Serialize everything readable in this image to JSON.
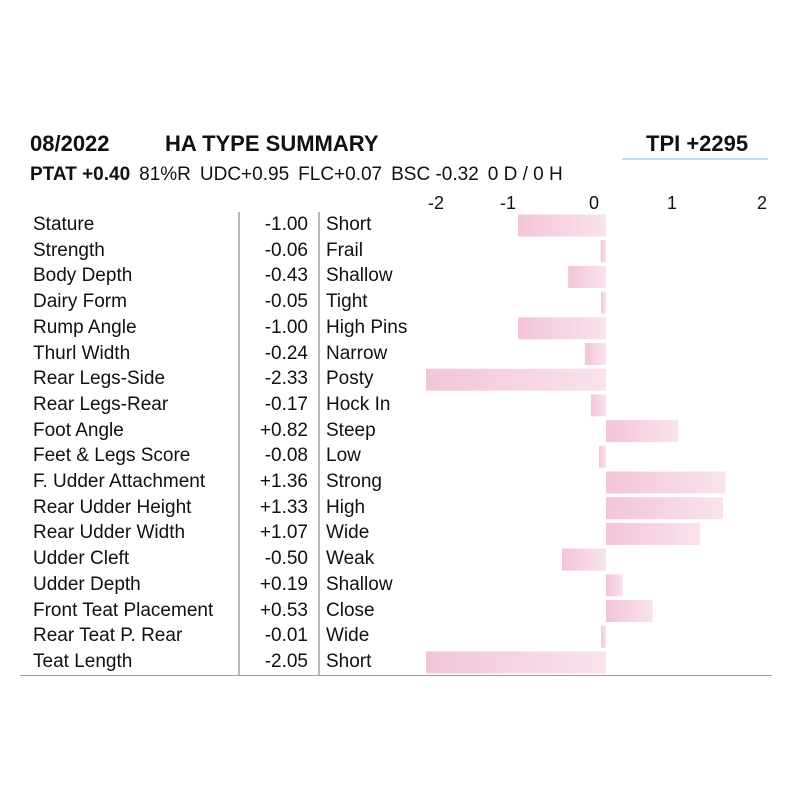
{
  "header": {
    "date": "08/2022",
    "title": "HA TYPE SUMMARY",
    "tpi": "TPI +2295"
  },
  "subheader": {
    "ptat": "PTAT +0.40",
    "reliability": "81%R",
    "udc": "UDC+0.95",
    "flc": "FLC+0.07",
    "bsc": "BSC -0.32",
    "daughters": "0 D /  0 H"
  },
  "colors": {
    "bar": "#f3c4d8",
    "bar_light": "#f9e3ed",
    "rule": "#b8b8b8",
    "accent_line": "#bfe0ea"
  },
  "chart_data": {
    "type": "bar",
    "orientation": "horizontal",
    "x_ticks": [
      "-2",
      "-1",
      "0",
      "1",
      "2"
    ],
    "xlim": [
      -2,
      2
    ],
    "categories": [
      "Stature",
      "Strength",
      "Body Depth",
      "Dairy Form",
      "Rump Angle",
      "Thurl Width",
      "Rear Legs-Side",
      "Rear Legs-Rear",
      "Foot Angle",
      "Feet & Legs Score",
      "F. Udder Attachment",
      "Rear Udder Height",
      "Rear Udder Width",
      "Udder Cleft",
      "Udder Depth",
      "Front Teat Placement",
      "Rear Teat P. Rear",
      "Teat Length"
    ],
    "value_labels": [
      "-1.00",
      "-0.06",
      "-0.43",
      "-0.05",
      "-1.00",
      "-0.24",
      "-2.33",
      "-0.17",
      "+0.82",
      "-0.08",
      "+1.36",
      "+1.33",
      "+1.07",
      "-0.50",
      "+0.19",
      "+0.53",
      "-0.01",
      "-2.05"
    ],
    "values": [
      -1.0,
      -0.06,
      -0.43,
      -0.05,
      -1.0,
      -0.24,
      -2.33,
      -0.17,
      0.82,
      -0.08,
      1.36,
      1.33,
      1.07,
      -0.5,
      0.19,
      0.53,
      -0.01,
      -2.05
    ],
    "descriptors": [
      "Short",
      "Frail",
      "Shallow",
      "Tight",
      "High Pins",
      "Narrow",
      "Posty",
      "Hock In",
      "Steep",
      "Low",
      "Strong",
      "High",
      "Wide",
      "Weak",
      "Shallow",
      "Close",
      "Wide",
      "Short"
    ]
  }
}
